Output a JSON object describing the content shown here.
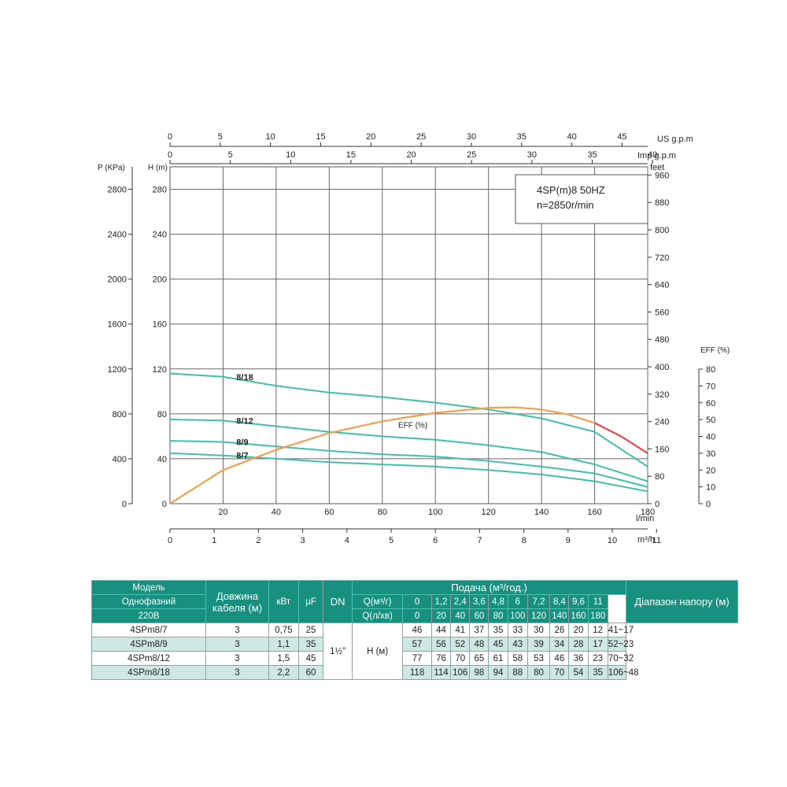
{
  "chart_data": {
    "type": "line",
    "info_box": {
      "line1": "4SP(m)8  50HZ",
      "line2": "n=2850r/min"
    },
    "axes": {
      "top_us": {
        "label": "US g.p.m",
        "ticks": [
          "0",
          "5",
          "10",
          "15",
          "20",
          "25",
          "30",
          "35",
          "40",
          "45"
        ],
        "range": [
          0,
          47.55
        ]
      },
      "top_imp": {
        "label": "Imp g.p.m",
        "ticks": [
          "0",
          "5",
          "10",
          "15",
          "20",
          "25",
          "30",
          "35",
          "40"
        ],
        "range": [
          0,
          39.6
        ]
      },
      "x_lmin": {
        "label": "l/min",
        "ticks": [
          "20",
          "40",
          "60",
          "80",
          "100",
          "120",
          "140",
          "160",
          "180"
        ],
        "range": [
          0,
          180
        ]
      },
      "x_m3h": {
        "label": "m³/h",
        "ticks": [
          "0",
          "1",
          "2",
          "3",
          "4",
          "5",
          "6",
          "7",
          "8",
          "9",
          "10",
          "11"
        ],
        "range": [
          0,
          10.8
        ]
      },
      "y_h": {
        "label": "H (m)",
        "ticks": [
          "0",
          "40",
          "80",
          "120",
          "160",
          "200",
          "240",
          "280"
        ],
        "range": [
          0,
          300
        ]
      },
      "y_p": {
        "label": "P (KPa)",
        "ticks": [
          "0",
          "400",
          "800",
          "1200",
          "1600",
          "2000",
          "2400",
          "2800"
        ],
        "range": [
          0,
          3000
        ]
      },
      "y_feet": {
        "label": "feet",
        "ticks": [
          "0",
          "80",
          "160",
          "240",
          "320",
          "400",
          "480",
          "560",
          "640",
          "720",
          "800",
          "880",
          "960"
        ],
        "range": [
          0,
          984
        ]
      },
      "y_eff": {
        "label": "EFF (%)",
        "ticks": [
          "0",
          "10",
          "20",
          "30",
          "40",
          "50",
          "60",
          "70",
          "80"
        ],
        "range": [
          0,
          80
        ]
      }
    },
    "series": [
      {
        "name": "8/18",
        "color": "#3fbfac",
        "x": [
          0,
          20,
          40,
          60,
          80,
          100,
          120,
          140,
          160,
          180
        ],
        "y": [
          116,
          113,
          105,
          99,
          95,
          90,
          84,
          76,
          64,
          33
        ]
      },
      {
        "name": "8/12",
        "color": "#3fbfac",
        "x": [
          0,
          20,
          40,
          60,
          80,
          100,
          120,
          140,
          160,
          180
        ],
        "y": [
          75,
          74,
          69,
          64,
          60,
          57,
          52,
          46,
          35,
          20
        ]
      },
      {
        "name": "8/9",
        "color": "#3fbfac",
        "x": [
          0,
          20,
          40,
          60,
          80,
          100,
          120,
          140,
          160,
          180
        ],
        "y": [
          56,
          55,
          51,
          47,
          44,
          42,
          38,
          33,
          27,
          15
        ]
      },
      {
        "name": "8/7",
        "color": "#3fbfac",
        "x": [
          0,
          20,
          40,
          60,
          80,
          100,
          120,
          140,
          160,
          180
        ],
        "y": [
          45,
          43,
          40,
          37,
          35,
          33,
          30,
          26,
          20,
          11
        ]
      },
      {
        "name": "EFF (%)",
        "color": "#f0a050",
        "overload_color": "#e04a55",
        "overload_from_x": 160,
        "x": [
          0,
          20,
          40,
          60,
          80,
          100,
          120,
          130,
          140,
          150,
          160,
          170,
          180
        ],
        "y": [
          0,
          20,
          32,
          42,
          49,
          54,
          57,
          57.3,
          56,
          53,
          48,
          40,
          30
        ]
      }
    ]
  },
  "table": {
    "header": {
      "model": "Модель",
      "single_phase": "Однофазний",
      "voltage": "220В",
      "cable": "Довжина кабеля (м)",
      "kw": "кВт",
      "uf": "µF",
      "dn": "DN",
      "flow": "Подача (м³/год.)",
      "q_m3h_label": "Q(м³/г)",
      "q_lmin_label": "Q(л/хв)",
      "q_m3h": [
        "0",
        "1,2",
        "2,4",
        "3,6",
        "4,8",
        "6",
        "7,2",
        "8,4",
        "9,6",
        "11"
      ],
      "q_lmin": [
        "0",
        "20",
        "40",
        "60",
        "80",
        "100",
        "120",
        "140",
        "160",
        "180"
      ],
      "range": "Діапазон напору (м)"
    },
    "dn_value": "1½\"",
    "h_label": "H (м)",
    "rows": [
      {
        "model": "4SPm8/7",
        "cable": "3",
        "kw": "0,75",
        "uf": "25",
        "heads": [
          "46",
          "44",
          "41",
          "37",
          "35",
          "33",
          "30",
          "26",
          "20",
          "12"
        ],
        "range": "41~17"
      },
      {
        "model": "4SPm8/9",
        "cable": "3",
        "kw": "1,1",
        "uf": "35",
        "heads": [
          "57",
          "56",
          "52",
          "48",
          "45",
          "43",
          "39",
          "34",
          "28",
          "17"
        ],
        "range": "52~23"
      },
      {
        "model": "4SPm8/12",
        "cable": "3",
        "kw": "1,5",
        "uf": "45",
        "heads": [
          "77",
          "76",
          "70",
          "65",
          "61",
          "58",
          "53",
          "46",
          "36",
          "23"
        ],
        "range": "70~32"
      },
      {
        "model": "4SPm8/18",
        "cable": "3",
        "kw": "2,2",
        "uf": "60",
        "heads": [
          "118",
          "114",
          "106",
          "98",
          "94",
          "88",
          "80",
          "70",
          "54",
          "35"
        ],
        "range": "106~48"
      }
    ]
  }
}
